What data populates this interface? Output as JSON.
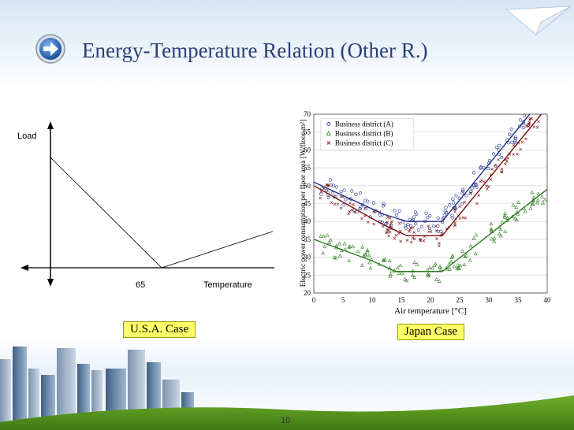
{
  "slide": {
    "title": "Energy-Temperature Relation (Other R.)",
    "page_number": "10",
    "usa_case_label": "U.S.A. Case",
    "japan_case_label": "Japan Case"
  },
  "chart_data": [
    {
      "type": "line",
      "ylabel": "Load",
      "xlabel": "Temperature",
      "x_tick_label": "65",
      "series": [
        {
          "x": [
            0,
            65,
            130
          ],
          "y": [
            85,
            0,
            28
          ]
        }
      ]
    },
    {
      "type": "scatter",
      "xlabel": "Air temperature [°C]",
      "ylabel": "Electric power consumption per floor area [W/floor-m²]",
      "xlim": [
        0,
        40
      ],
      "ylim": [
        20,
        70
      ],
      "x_ticks": [
        0,
        5,
        10,
        15,
        20,
        25,
        30,
        35,
        40
      ],
      "y_ticks": [
        20,
        25,
        30,
        35,
        40,
        45,
        50,
        55,
        60,
        65,
        70
      ],
      "legend_position": "top-left",
      "series": [
        {
          "name": "Business district (A)",
          "marker": "o",
          "color": "#1f2f8a",
          "fit": [
            [
              0,
              51
            ],
            [
              12,
              42
            ],
            [
              16,
              40
            ],
            [
              22,
              40
            ],
            [
              37,
              70
            ]
          ]
        },
        {
          "name": "Business district (B)",
          "marker": "triangle",
          "color": "#2e7d1e",
          "fit": [
            [
              0,
              35
            ],
            [
              10,
              29
            ],
            [
              14,
              26
            ],
            [
              22,
              26
            ],
            [
              40,
              49
            ]
          ]
        },
        {
          "name": "Business district (C)",
          "marker": "x",
          "color": "#7a1010",
          "fit": [
            [
              0,
              50
            ],
            [
              12,
              39
            ],
            [
              16,
              36
            ],
            [
              22,
              36
            ],
            [
              39,
              70
            ]
          ]
        }
      ]
    }
  ]
}
